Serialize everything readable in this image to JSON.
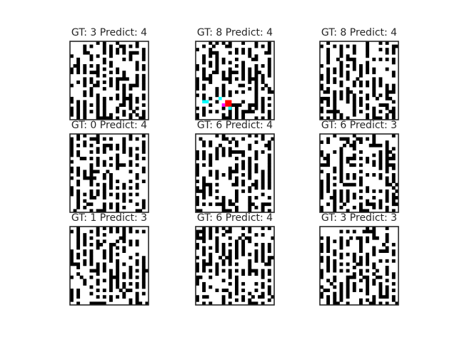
{
  "figure": {
    "rows": 3,
    "cols": 3,
    "maze_cells": 24
  },
  "chart_data": {
    "type": "heatmap",
    "panels": [
      {
        "gt_label": "GT: 3",
        "pred_label": "Predict: 4",
        "gt": 3,
        "predict": 4,
        "seed": 11,
        "path": false
      },
      {
        "gt_label": "GT: 8",
        "pred_label": "Predict: 4",
        "gt": 8,
        "predict": 4,
        "seed": 23,
        "path": true
      },
      {
        "gt_label": "GT: 8",
        "pred_label": "Predict: 4",
        "gt": 8,
        "predict": 4,
        "seed": 37,
        "path": false
      },
      {
        "gt_label": "GT: 0",
        "pred_label": "Predict: 4",
        "gt": 0,
        "predict": 4,
        "seed": 41,
        "path": false
      },
      {
        "gt_label": "GT: 6",
        "pred_label": "Predict: 4",
        "gt": 6,
        "predict": 4,
        "seed": 53,
        "path": false
      },
      {
        "gt_label": "GT: 6",
        "pred_label": "Predict: 3",
        "gt": 6,
        "predict": 3,
        "seed": 67,
        "path": false
      },
      {
        "gt_label": "GT: 1",
        "pred_label": "Predict: 3",
        "gt": 1,
        "predict": 3,
        "seed": 71,
        "path": false
      },
      {
        "gt_label": "GT: 6",
        "pred_label": "Predict: 4",
        "gt": 6,
        "predict": 4,
        "seed": 83,
        "path": false
      },
      {
        "gt_label": "GT: 3",
        "pred_label": "Predict: 3",
        "gt": 3,
        "predict": 3,
        "seed": 97,
        "path": false
      }
    ],
    "colors": {
      "wall": "#000000",
      "floor": "#ffffff",
      "frame": "#262626",
      "title": "#262626",
      "path_cyan": "#00ffff",
      "path_red": "#ff0000",
      "path_magenta": "#ff00ff"
    }
  }
}
